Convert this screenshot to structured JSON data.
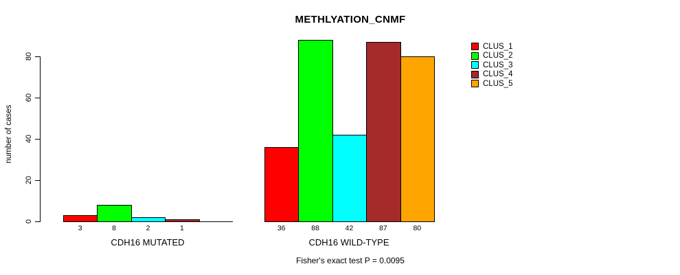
{
  "chart_data": {
    "type": "bar",
    "title": "METHLYATION_CNMF",
    "ylabel": "number of cases",
    "xlabel": "",
    "ylim": [
      0,
      80
    ],
    "yticks": [
      0,
      20,
      40,
      60,
      80
    ],
    "grid": false,
    "legend_position": "right-outside",
    "series": [
      {
        "name": "CLUS_1",
        "color": "#FF0000"
      },
      {
        "name": "CLUS_2",
        "color": "#00FF00"
      },
      {
        "name": "CLUS_3",
        "color": "#00FFFF"
      },
      {
        "name": "CLUS_4",
        "color": "#A52A2A"
      },
      {
        "name": "CLUS_5",
        "color": "#FFA500"
      }
    ],
    "groups": [
      {
        "label": "CDH16 MUTATED",
        "values": [
          3,
          8,
          2,
          1,
          0
        ]
      },
      {
        "label": "CDH16 WILD-TYPE",
        "values": [
          36,
          88,
          42,
          87,
          80
        ]
      }
    ],
    "annotation": "Fisher's exact test P = 0.0095"
  }
}
